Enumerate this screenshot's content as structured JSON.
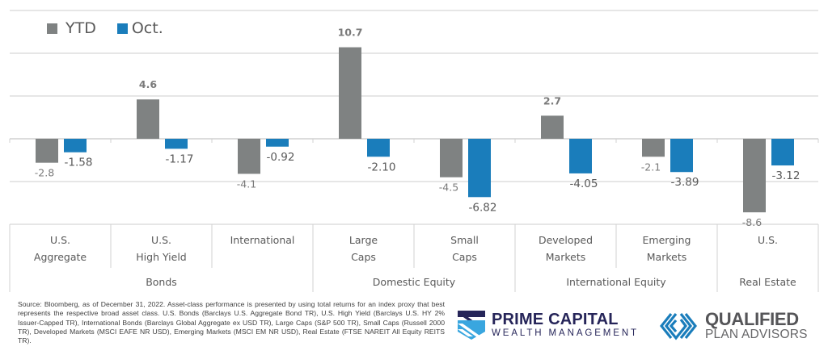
{
  "chart_data": {
    "type": "bar",
    "title": "",
    "xlabel": "",
    "ylabel": "",
    "ylim": [
      -10,
      15
    ],
    "ygrid_step": 5,
    "grid": true,
    "legend_position": "top-left",
    "categories": [
      "U.S. Aggregate",
      "U.S. High Yield",
      "International",
      "Large Caps",
      "Small Caps",
      "Developed Markets",
      "Emerging Markets",
      "U.S."
    ],
    "category_lines": [
      [
        "U.S.",
        "Aggregate"
      ],
      [
        "U.S.",
        "High Yield"
      ],
      [
        "International"
      ],
      [
        "Large",
        "Caps"
      ],
      [
        "Small",
        "Caps"
      ],
      [
        "Developed",
        "Markets"
      ],
      [
        "Emerging",
        "Markets"
      ],
      [
        "U.S."
      ]
    ],
    "groups": [
      {
        "name": "Bonds",
        "span": 3
      },
      {
        "name": "Domestic Equity",
        "span": 2
      },
      {
        "name": "International Equity",
        "span": 2
      },
      {
        "name": "Real Estate",
        "span": 1
      }
    ],
    "series": [
      {
        "name": "YTD",
        "color": "#7f8282",
        "values": [
          -2.8,
          4.6,
          -4.1,
          10.7,
          -4.5,
          2.7,
          -2.1,
          -8.6
        ],
        "labels": [
          "-2.8",
          "4.6",
          "-4.1",
          "10.7",
          "-4.5",
          "2.7",
          "-2.1",
          "-8.6"
        ]
      },
      {
        "name": "Oct.",
        "color": "#1a7dbb",
        "values": [
          -1.58,
          -1.17,
          -0.92,
          -2.1,
          -6.82,
          -4.05,
          -3.89,
          -3.12
        ],
        "labels": [
          "-1.58",
          "-1.17",
          "-0.92",
          "-2.10",
          "-6.82",
          "-4.05",
          "-3.89",
          "-3.12"
        ]
      }
    ]
  },
  "legend": {
    "ytd_label": "YTD",
    "oct_label": "Oct."
  },
  "footer": {
    "source": "Source: Bloomberg, as of December 31, 2022. Asset-class performance is presented by using total returns for an index proxy that best represents the respective broad asset class. U.S. Bonds (Barclays U.S. Aggregate Bond TR), U.S. High Yield (Barclays U.S. HY 2% Issuer-Capped TR), International Bonds (Barclays Global Aggregate ex USD TR), Large Caps (S&P 500 TR), Small Caps (Russell 2000 TR), Developed Markets (MSCI EAFE NR USD), Emerging Markets (MSCI EM NR USD), Real Estate (FTSE NAREIT All Equity REITS TR)."
  },
  "logos": {
    "prime_name": "PRIME CAPITAL",
    "prime_sub": "WEALTH MANAGEMENT",
    "qpa_name": "QUALIFIED",
    "qpa_sub": "PLAN ADVISORS"
  }
}
